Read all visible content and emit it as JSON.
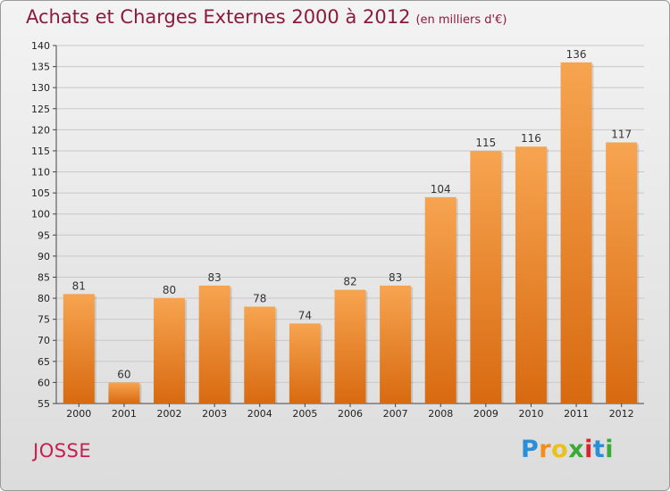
{
  "header": {
    "title": "Achats et Charges Externes 2000 à 2012",
    "subtitle": "(en milliers d'€)"
  },
  "footer": {
    "commune": "JOSSE",
    "logo": "Proxiti"
  },
  "colors": {
    "bar_top": "#f7a450",
    "bar_bottom": "#d86a10",
    "title": "#8b1a3c",
    "commune": "#c41f4e"
  },
  "chart_data": {
    "type": "bar",
    "title": "Achats et Charges Externes 2000 à 2012",
    "subtitle": "(en milliers d'€)",
    "categories": [
      "2000",
      "2001",
      "2002",
      "2003",
      "2004",
      "2005",
      "2006",
      "2007",
      "2008",
      "2009",
      "2010",
      "2011",
      "2012"
    ],
    "values": [
      81,
      60,
      80,
      83,
      78,
      74,
      82,
      83,
      104,
      115,
      116,
      136,
      117
    ],
    "ylim": [
      55,
      140
    ],
    "yticks": [
      55,
      60,
      65,
      70,
      75,
      80,
      85,
      90,
      95,
      100,
      105,
      110,
      115,
      120,
      125,
      130,
      135,
      140
    ],
    "grid": true
  }
}
